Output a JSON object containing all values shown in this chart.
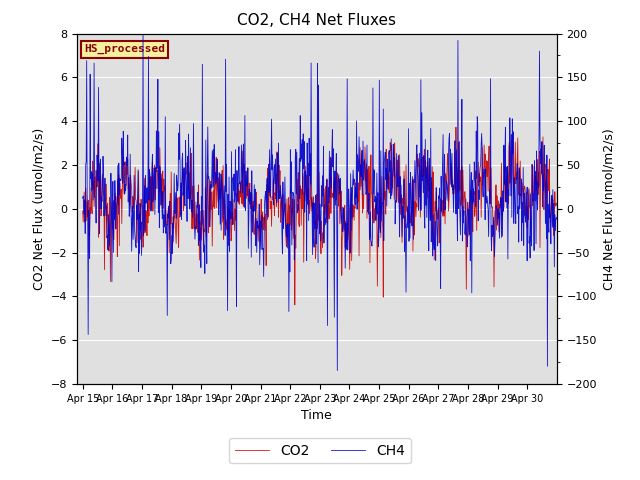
{
  "title": "CO2, CH4 Net Fluxes",
  "xlabel": "Time",
  "ylabel_left": "CO2 Net Flux (umol/m2/s)",
  "ylabel_right": "CH4 Net Flux (nmol/m2/s)",
  "ylim_left": [
    -8,
    8
  ],
  "ylim_right": [
    -200,
    200
  ],
  "yticks_left": [
    -8,
    -6,
    -4,
    -2,
    0,
    2,
    4,
    6,
    8
  ],
  "yticks_right": [
    -200,
    -150,
    -100,
    -50,
    0,
    50,
    100,
    150,
    200
  ],
  "xtick_labels": [
    "Apr 15",
    "Apr 16",
    "Apr 17",
    "Apr 18",
    "Apr 19",
    "Apr 20",
    "Apr 21",
    "Apr 22",
    "Apr 23",
    "Apr 24",
    "Apr 25",
    "Apr 26",
    "Apr 27",
    "Apr 28",
    "Apr 29",
    "Apr 30"
  ],
  "annotation_text": "HS_processed",
  "annotation_facecolor": "#f5f0a0",
  "annotation_edgecolor": "#8B0000",
  "co2_color": "#cc0000",
  "ch4_color": "#0000cc",
  "background_color": "#e0e0e0",
  "scale_factor": 25,
  "n_points": 960,
  "seed": 42,
  "legend_co2": "CO2",
  "legend_ch4": "CH4",
  "title_fontsize": 11,
  "axis_label_fontsize": 9,
  "tick_fontsize": 8,
  "xtick_fontsize": 7
}
